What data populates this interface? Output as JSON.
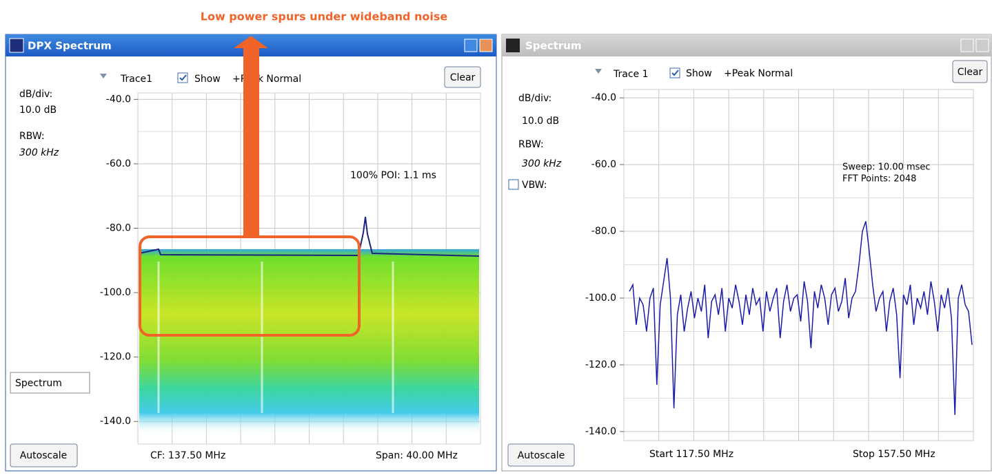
{
  "annotation": "Low power spurs under wideband noise",
  "panels": [
    {
      "title": "DPX Spectrum",
      "trace": "Trace1",
      "show": "Show",
      "detector": "+Peak Normal",
      "clear": "Clear",
      "settings": [
        {
          "label": "dB/div:",
          "value": "10.0 dB"
        },
        {
          "label": "RBW:",
          "value": "300 kHz"
        }
      ],
      "ylim": [
        -38,
        -147
      ],
      "yticks": [
        {
          "value": -40,
          "label": "-40.0"
        },
        {
          "value": -60,
          "label": "-60.0"
        },
        {
          "value": -80,
          "label": "-80.0"
        },
        {
          "value": -100,
          "label": "-100.0"
        },
        {
          "value": -120,
          "label": "-120.0"
        },
        {
          "value": -140,
          "label": "-140.0"
        }
      ],
      "poi": "100% POI: 1.1 ms",
      "mode": "Spectrum",
      "autoscale": "Autoscale",
      "cf": "CF:  137.50 MHz",
      "span": "Span: 40.00 MHz"
    },
    {
      "title": "Spectrum",
      "trace": "Trace 1",
      "show": "Show",
      "detector": "+Peak Normal",
      "clear": "Clear",
      "settings": [
        {
          "label": "dB/div:",
          "value": "10.0 dB"
        },
        {
          "label": "RBW:",
          "value": "300 kHz"
        }
      ],
      "vbw": "VBW:",
      "ylim": [
        -37.5,
        -142.7
      ],
      "yticks": [
        {
          "value": -40,
          "label": "-40.0"
        },
        {
          "value": -60,
          "label": "-60.0"
        },
        {
          "value": -80,
          "label": "-80.0"
        },
        {
          "value": -100,
          "label": "-100.0"
        },
        {
          "value": -120,
          "label": "-120.0"
        },
        {
          "value": -140,
          "label": "-140.0"
        }
      ],
      "sweep": "Sweep: 10.00 msec",
      "fft": "FFT Points: 2048",
      "autoscale": "Autoscale",
      "start": "Start  117.50 MHz",
      "stop": "Stop  157.50 MHz",
      "trace_values": [
        -98,
        -96,
        -108,
        -100,
        -102,
        -110,
        -100,
        -97,
        -126,
        -102,
        -95,
        -88,
        -100,
        -133,
        -105,
        -99,
        -110,
        -103,
        -98,
        -106,
        -100,
        -104,
        -96,
        -112,
        -101,
        -99,
        -105,
        -97,
        -110,
        -100,
        -103,
        -96,
        -101,
        -108,
        -99,
        -105,
        -97,
        -102,
        -100,
        -110,
        -98,
        -104,
        -100,
        -97,
        -112,
        -101,
        -96,
        -104,
        -100,
        -99,
        -107,
        -95,
        -101,
        -115,
        -98,
        -103,
        -96,
        -100,
        -108,
        -99,
        -97,
        -104,
        -101,
        -94,
        -106,
        -100,
        -98,
        -90,
        -80,
        -77,
        -86,
        -96,
        -104,
        -100,
        -98,
        -110,
        -101,
        -97,
        -105,
        -124,
        -99,
        -102,
        -96,
        -108,
        -100,
        -103,
        -98,
        -105,
        -95,
        -101,
        -110,
        -99,
        -103,
        -97,
        -106,
        -135,
        -100,
        -96,
        -102,
        -104,
        -114
      ]
    }
  ]
}
